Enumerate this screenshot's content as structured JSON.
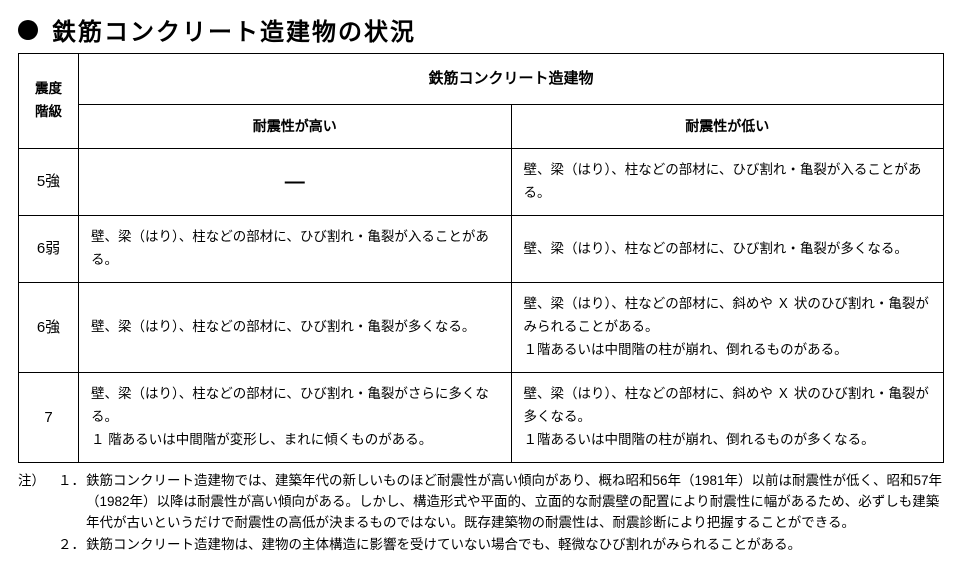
{
  "title": "鉄筋コンクリート造建物の状況",
  "table": {
    "rowHeaderLabel": "震度\n階級",
    "groupHeader": "鉄筋コンクリート造建物",
    "subHeaders": [
      "耐震性が高い",
      "耐震性が低い"
    ],
    "rows": [
      {
        "level": "5強",
        "high": "—",
        "highIsDash": true,
        "low": "壁、梁（はり）、柱などの部材に、ひび割れ・亀裂が入ることがある。"
      },
      {
        "level": "6弱",
        "high": "壁、梁（はり）、柱などの部材に、ひび割れ・亀裂が入ることがある。",
        "low": "壁、梁（はり）、柱などの部材に、ひび割れ・亀裂が多くなる。"
      },
      {
        "level": "6強",
        "high": "壁、梁（はり）、柱などの部材に、ひび割れ・亀裂が多くなる。",
        "low": "壁、梁（はり）、柱などの部材に、斜めや Ｘ 状のひび割れ・亀裂がみられることがある。\n１階あるいは中間階の柱が崩れ、倒れるものがある。"
      },
      {
        "level": "7",
        "high": "壁、梁（はり）、柱などの部材に、ひび割れ・亀裂がさらに多くなる。\n１ 階あるいは中間階が変形し、まれに傾くものがある。",
        "low": "壁、梁（はり）、柱などの部材に、斜めや Ｘ 状のひび割れ・亀裂が多くなる。\n１階あるいは中間階の柱が崩れ、倒れるものが多くなる。"
      }
    ]
  },
  "notes": {
    "label": "注）",
    "items": [
      {
        "num": "１．",
        "text": "鉄筋コンクリート造建物では、建築年代の新しいものほど耐震性が高い傾向があり、概ね昭和56年（1981年）以前は耐震性が低く、昭和57年（1982年）以降は耐震性が高い傾向がある。しかし、構造形式や平面的、立面的な耐震壁の配置により耐震性に幅があるため、必ずしも建築年代が古いというだけで耐震性の高低が決まるものではない。既存建築物の耐震性は、耐震診断により把握することができる。"
      },
      {
        "num": "２．",
        "text": "鉄筋コンクリート造建物は、建物の主体構造に影響を受けていない場合でも、軽微なひび割れがみられることがある。"
      }
    ]
  }
}
